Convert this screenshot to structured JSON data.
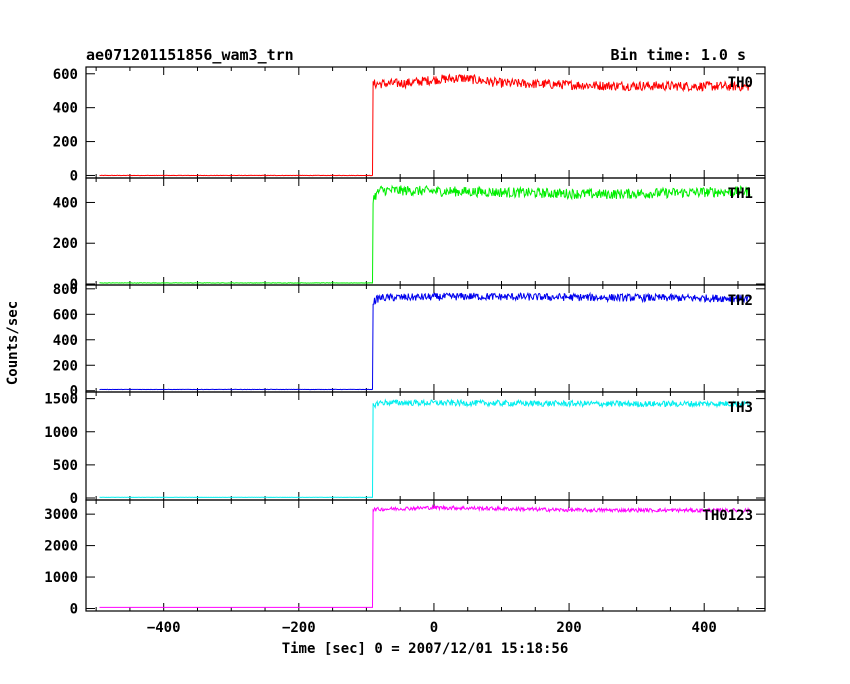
{
  "header": {
    "title": "ae071201151856_wam3_trn",
    "bin_time": "Bin time: 1.0 s"
  },
  "chart_data": {
    "type": "line",
    "title": "ae071201151856_wam3_trn",
    "subtitle": "Bin time: 1.0 s",
    "xlabel": "Time [sec] 0 = 2007/12/01 15:18:56",
    "ylabel": "Counts/sec",
    "xlim": [
      -515,
      490
    ],
    "x_ticks": [
      -400,
      -200,
      0,
      200,
      400
    ],
    "x_tick_labels": [
      "−400",
      "−200",
      "0",
      "200",
      "400"
    ],
    "x_range_data": [
      -495,
      468
    ],
    "step_time": -90,
    "grid": false,
    "panels": [
      {
        "label": "TH0",
        "color": "#ff0000",
        "ylim": [
          -15,
          640
        ],
        "y_ticks": [
          0,
          200,
          400,
          600
        ],
        "baseline": 0,
        "profile": [
          [
            -90,
            540
          ],
          [
            -40,
            545
          ],
          [
            0,
            565
          ],
          [
            40,
            575
          ],
          [
            100,
            545
          ],
          [
            250,
            530
          ],
          [
            468,
            525
          ]
        ],
        "noise": 28
      },
      {
        "label": "TH1",
        "color": "#00ee00",
        "ylim": [
          -5,
          520
        ],
        "y_ticks": [
          0,
          200,
          400
        ],
        "baseline": 5,
        "profile": [
          [
            -90,
            420
          ],
          [
            -80,
            460
          ],
          [
            100,
            450
          ],
          [
            250,
            440
          ],
          [
            468,
            455
          ]
        ],
        "noise": 25
      },
      {
        "label": "TH2",
        "color": "#0000ee",
        "ylim": [
          -10,
          830
        ],
        "y_ticks": [
          0,
          200,
          400,
          600,
          800
        ],
        "baseline": 10,
        "profile": [
          [
            -90,
            700
          ],
          [
            -80,
            730
          ],
          [
            50,
            740
          ],
          [
            300,
            730
          ],
          [
            468,
            725
          ]
        ],
        "noise": 30
      },
      {
        "label": "TH3",
        "color": "#00eeee",
        "ylim": [
          -30,
          1600
        ],
        "y_ticks": [
          0,
          500,
          1000,
          1500
        ],
        "y_tick_labels": [
          "0",
          "500",
          "1000",
          "1500"
        ],
        "baseline": 10,
        "profile": [
          [
            -90,
            1400
          ],
          [
            -80,
            1440
          ],
          [
            100,
            1430
          ],
          [
            300,
            1420
          ],
          [
            468,
            1425
          ]
        ],
        "noise": 45
      },
      {
        "label": "TH0123",
        "color": "#ff00ff",
        "ylim": [
          -80,
          3450
        ],
        "y_ticks": [
          0,
          1000,
          2000,
          3000
        ],
        "y_tick_labels": [
          "0",
          "1000",
          "2000",
          "3000"
        ],
        "baseline": 35,
        "profile": [
          [
            -90,
            3150
          ],
          [
            0,
            3210
          ],
          [
            60,
            3190
          ],
          [
            200,
            3130
          ],
          [
            468,
            3120
          ]
        ],
        "noise": 60
      }
    ]
  }
}
